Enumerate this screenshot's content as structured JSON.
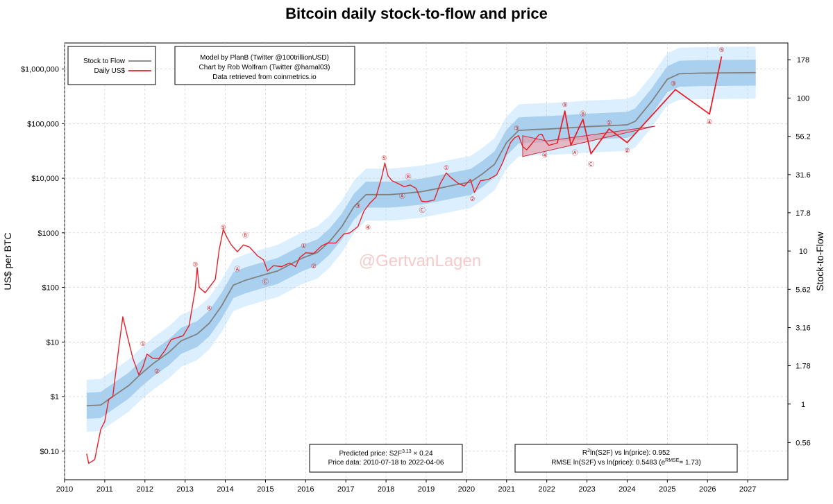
{
  "chart_data": {
    "type": "line",
    "title": "Bitcoin daily stock-to-flow and price",
    "ylabel": "US$ per BTC",
    "y2label": "Stock-to-Flow",
    "y_scale": "log",
    "ylim": [
      0.03,
      3000000
    ],
    "y2lim": [
      0.32,
      229
    ],
    "xlim": [
      "2010-01-01",
      "2027-12-31"
    ],
    "x_ticks": [
      "2010",
      "2011",
      "2012",
      "2013",
      "2014",
      "2015",
      "2016",
      "2017",
      "2018",
      "2019",
      "2020",
      "2021",
      "2022",
      "2023",
      "2024",
      "2025",
      "2026",
      "2027"
    ],
    "y_ticks": [
      {
        "value": 0.1,
        "label": "$0.10"
      },
      {
        "value": 1,
        "label": "$1"
      },
      {
        "value": 10,
        "label": "$10"
      },
      {
        "value": 100,
        "label": "$100"
      },
      {
        "value": 1000,
        "label": "$1000"
      },
      {
        "value": 10000,
        "label": "$10,000"
      },
      {
        "value": 100000,
        "label": "$100,000"
      },
      {
        "value": 1000000,
        "label": "$1,000,000"
      }
    ],
    "y2_ticks": [
      {
        "value": 0.56,
        "label": "0.56"
      },
      {
        "value": 1,
        "label": "1"
      },
      {
        "value": 1.78,
        "label": "1.78"
      },
      {
        "value": 3.16,
        "label": "3.16"
      },
      {
        "value": 5.62,
        "label": "5.62"
      },
      {
        "value": 10,
        "label": "10"
      },
      {
        "value": 17.8,
        "label": "17.8"
      },
      {
        "value": 31.6,
        "label": "31.6"
      },
      {
        "value": 56.2,
        "label": "56.2"
      },
      {
        "value": 100,
        "label": "100"
      },
      {
        "value": 178,
        "label": "178"
      }
    ],
    "grid": true,
    "legend_position": "top-left",
    "legend": [
      {
        "name": "Stock to Flow",
        "color": "#808080"
      },
      {
        "name": "Daily US$",
        "color": "#e8202a"
      }
    ],
    "info_box": [
      "Model by PlanB (Twitter @100trillionUSD)",
      "Chart by Rob Wolfram (Twitter @hamal03)",
      "Data retrieved from coinmetrics.io"
    ],
    "predicted_price": {
      "prefix": "Predicted price: S2F",
      "exp": "3.13",
      "suffix": "× 0.24"
    },
    "price_data": "Price data: 2010-07-18 to 2022-04-06",
    "r2": {
      "pre": "R",
      "sup": "2",
      "post": "ln(S2F) vs ln(price): 0.952"
    },
    "rmse": {
      "pre": "RMSE ln(S2F) vs ln(price): 0.5483 (e",
      "sup": "RMSE",
      "post": "= 1.73)"
    },
    "watermark": "@GertvanLagen",
    "series": [
      {
        "name": "Stock to Flow",
        "color": "#808080",
        "points": [
          [
            2010.55,
            0.68
          ],
          [
            2010.9,
            0.7
          ],
          [
            2011.2,
            1.0
          ],
          [
            2011.6,
            1.6
          ],
          [
            2011.9,
            2.6
          ],
          [
            2012.2,
            4.0
          ],
          [
            2012.6,
            6.5
          ],
          [
            2012.9,
            10.5
          ],
          [
            2013.3,
            14
          ],
          [
            2013.6,
            22
          ],
          [
            2013.9,
            45
          ],
          [
            2014.2,
            110
          ],
          [
            2014.5,
            135
          ],
          [
            2014.9,
            165
          ],
          [
            2015.3,
            200
          ],
          [
            2015.6,
            260
          ],
          [
            2015.9,
            340
          ],
          [
            2016.3,
            440
          ],
          [
            2016.6,
            700
          ],
          [
            2016.9,
            1300
          ],
          [
            2017.2,
            3000
          ],
          [
            2017.5,
            5000
          ],
          [
            2017.8,
            5000
          ],
          [
            2018.1,
            5000
          ],
          [
            2018.5,
            5300
          ],
          [
            2018.9,
            5700
          ],
          [
            2019.3,
            6500
          ],
          [
            2019.7,
            7500
          ],
          [
            2020.1,
            8500
          ],
          [
            2020.4,
            12000
          ],
          [
            2020.7,
            18000
          ],
          [
            2021.0,
            45000
          ],
          [
            2021.3,
            75000
          ],
          [
            2021.7,
            78000
          ],
          [
            2022.1,
            80000
          ],
          [
            2022.6,
            84000
          ],
          [
            2023.0,
            88000
          ],
          [
            2023.6,
            92000
          ],
          [
            2024.0,
            95000
          ],
          [
            2024.2,
            110000
          ],
          [
            2024.6,
            250000
          ],
          [
            2025.0,
            650000
          ],
          [
            2025.3,
            820000
          ],
          [
            2025.8,
            840000
          ],
          [
            2026.4,
            850000
          ],
          [
            2027.2,
            860000
          ]
        ]
      },
      {
        "name": "Daily US$",
        "color": "#e8202a",
        "points": [
          [
            2010.55,
            0.09
          ],
          [
            2010.6,
            0.06
          ],
          [
            2010.75,
            0.07
          ],
          [
            2010.9,
            0.25
          ],
          [
            2011.0,
            0.35
          ],
          [
            2011.1,
            0.9
          ],
          [
            2011.2,
            1.0
          ],
          [
            2011.35,
            8
          ],
          [
            2011.45,
            29
          ],
          [
            2011.55,
            14
          ],
          [
            2011.7,
            5
          ],
          [
            2011.85,
            2.5
          ],
          [
            2011.95,
            3.5
          ],
          [
            2012.05,
            6
          ],
          [
            2012.2,
            5
          ],
          [
            2012.35,
            5
          ],
          [
            2012.5,
            7
          ],
          [
            2012.65,
            11
          ],
          [
            2012.8,
            12
          ],
          [
            2012.95,
            13
          ],
          [
            2013.1,
            20
          ],
          [
            2013.25,
            90
          ],
          [
            2013.3,
            230
          ],
          [
            2013.35,
            100
          ],
          [
            2013.5,
            80
          ],
          [
            2013.6,
            100
          ],
          [
            2013.75,
            140
          ],
          [
            2013.85,
            500
          ],
          [
            2013.95,
            1150
          ],
          [
            2014.05,
            800
          ],
          [
            2014.15,
            600
          ],
          [
            2014.3,
            450
          ],
          [
            2014.45,
            600
          ],
          [
            2014.6,
            550
          ],
          [
            2014.8,
            380
          ],
          [
            2014.95,
            320
          ],
          [
            2015.05,
            200
          ],
          [
            2015.2,
            250
          ],
          [
            2015.4,
            240
          ],
          [
            2015.6,
            280
          ],
          [
            2015.75,
            240
          ],
          [
            2015.85,
            350
          ],
          [
            2016.0,
            430
          ],
          [
            2016.2,
            420
          ],
          [
            2016.4,
            580
          ],
          [
            2016.55,
            650
          ],
          [
            2016.75,
            650
          ],
          [
            2016.95,
            950
          ],
          [
            2017.1,
            1000
          ],
          [
            2017.3,
            1300
          ],
          [
            2017.45,
            2500
          ],
          [
            2017.6,
            3500
          ],
          [
            2017.75,
            4500
          ],
          [
            2017.9,
            11000
          ],
          [
            2017.97,
            19000
          ],
          [
            2018.05,
            11000
          ],
          [
            2018.15,
            9000
          ],
          [
            2018.3,
            8000
          ],
          [
            2018.45,
            7000
          ],
          [
            2018.6,
            7500
          ],
          [
            2018.75,
            6500
          ],
          [
            2018.88,
            3800
          ],
          [
            2019.0,
            3700
          ],
          [
            2019.2,
            4000
          ],
          [
            2019.35,
            8000
          ],
          [
            2019.5,
            12500
          ],
          [
            2019.6,
            10500
          ],
          [
            2019.8,
            8000
          ],
          [
            2019.95,
            7200
          ],
          [
            2020.1,
            9500
          ],
          [
            2020.2,
            5500
          ],
          [
            2020.35,
            9000
          ],
          [
            2020.55,
            9500
          ],
          [
            2020.75,
            11500
          ],
          [
            2020.9,
            19000
          ],
          [
            2021.0,
            30000
          ],
          [
            2021.1,
            45000
          ],
          [
            2021.2,
            55000
          ],
          [
            2021.3,
            60000
          ],
          [
            2021.4,
            38000
          ],
          [
            2021.5,
            33000
          ],
          [
            2021.65,
            45000
          ],
          [
            2021.8,
            62000
          ],
          [
            2021.88,
            64000
          ],
          [
            2021.95,
            50000
          ],
          [
            2022.05,
            40000
          ],
          [
            2022.15,
            42000
          ],
          [
            2022.26,
            44000
          ]
        ]
      },
      {
        "name": "Wave projection",
        "color": "#e8202a",
        "points": [
          [
            2022.26,
            44000
          ],
          [
            2022.45,
            170000
          ],
          [
            2022.6,
            40000
          ],
          [
            2022.9,
            120000
          ],
          [
            2023.1,
            28000
          ],
          [
            2023.55,
            80000
          ],
          [
            2024.0,
            45000
          ],
          [
            2025.2,
            420000
          ],
          [
            2026.05,
            150000
          ],
          [
            2026.35,
            1700000
          ]
        ]
      }
    ],
    "wave_labels": [
      {
        "text": "①",
        "x": 2011.95,
        "y": 9.5
      },
      {
        "text": "②",
        "x": 2012.3,
        "y": 3.0
      },
      {
        "text": "③",
        "x": 2013.25,
        "y": 270
      },
      {
        "text": "④",
        "x": 2013.6,
        "y": 43
      },
      {
        "text": "⑤",
        "x": 2013.95,
        "y": 1300
      },
      {
        "text": "Ⓐ",
        "x": 2014.3,
        "y": 220
      },
      {
        "text": "Ⓑ",
        "x": 2014.5,
        "y": 920
      },
      {
        "text": "Ⓒ",
        "x": 2015.0,
        "y": 130
      },
      {
        "text": "①",
        "x": 2015.95,
        "y": 600
      },
      {
        "text": "②",
        "x": 2016.2,
        "y": 250
      },
      {
        "text": "③",
        "x": 2017.3,
        "y": 3200
      },
      {
        "text": "④",
        "x": 2017.55,
        "y": 1300
      },
      {
        "text": "⑤",
        "x": 2017.95,
        "y": 24000
      },
      {
        "text": "Ⓐ",
        "x": 2018.4,
        "y": 4800
      },
      {
        "text": "Ⓑ",
        "x": 2018.55,
        "y": 11000
      },
      {
        "text": "Ⓒ",
        "x": 2018.9,
        "y": 2700
      },
      {
        "text": "①",
        "x": 2019.5,
        "y": 16000
      },
      {
        "text": "②",
        "x": 2020.15,
        "y": 4300
      },
      {
        "text": "③",
        "x": 2021.25,
        "y": 85000
      },
      {
        "text": "④",
        "x": 2021.95,
        "y": 27000
      },
      {
        "text": "⑤",
        "x": 2022.45,
        "y": 230000
      },
      {
        "text": "Ⓐ",
        "x": 2022.7,
        "y": 30000
      },
      {
        "text": "Ⓑ",
        "x": 2022.9,
        "y": 155000
      },
      {
        "text": "Ⓒ",
        "x": 2023.1,
        "y": 18500
      },
      {
        "text": "①",
        "x": 2023.55,
        "y": 107000
      },
      {
        "text": "②",
        "x": 2024.0,
        "y": 33000
      },
      {
        "text": "③",
        "x": 2025.15,
        "y": 560000
      },
      {
        "text": "④",
        "x": 2026.05,
        "y": 110000
      },
      {
        "text": "⑤",
        "x": 2026.35,
        "y": 2300000
      }
    ],
    "triangle": [
      [
        2021.4,
        25000
      ],
      [
        2024.7,
        90000
      ],
      [
        2022.0,
        48000
      ],
      [
        2021.4,
        60000
      ]
    ]
  }
}
